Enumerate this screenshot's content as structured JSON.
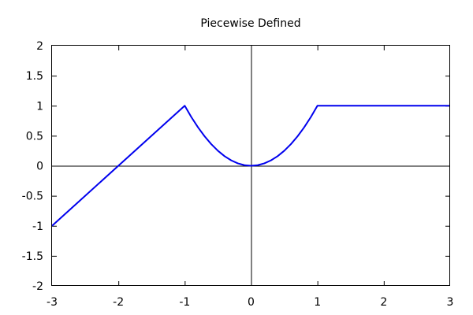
{
  "chart_data": {
    "type": "line",
    "title": "Piecewise Defined",
    "xlabel": "",
    "ylabel": "",
    "xlim": [
      -3,
      3
    ],
    "ylim": [
      -2,
      2
    ],
    "x_ticks": [
      "-3",
      "-2",
      "-1",
      "0",
      "1",
      "2",
      "3"
    ],
    "y_ticks": [
      "2",
      "1.5",
      "1",
      "0.5",
      "0",
      "-0.5",
      "-1",
      "-1.5",
      "-2"
    ],
    "grid": false,
    "zero_axes": true,
    "series": [
      {
        "color": "#0000ee",
        "x": [
          -3,
          -2,
          -1,
          -0.9,
          -0.8,
          -0.7,
          -0.6,
          -0.5,
          -0.4,
          -0.3,
          -0.2,
          -0.1,
          0,
          0.1,
          0.2,
          0.3,
          0.4,
          0.5,
          0.6,
          0.7,
          0.8,
          0.9,
          1,
          2,
          3
        ],
        "y": [
          -1,
          0,
          1,
          0.81,
          0.64,
          0.49,
          0.36,
          0.25,
          0.16,
          0.09,
          0.04,
          0.01,
          0,
          0.01,
          0.04,
          0.09,
          0.16,
          0.25,
          0.36,
          0.49,
          0.64,
          0.81,
          1,
          1,
          1
        ]
      }
    ]
  }
}
